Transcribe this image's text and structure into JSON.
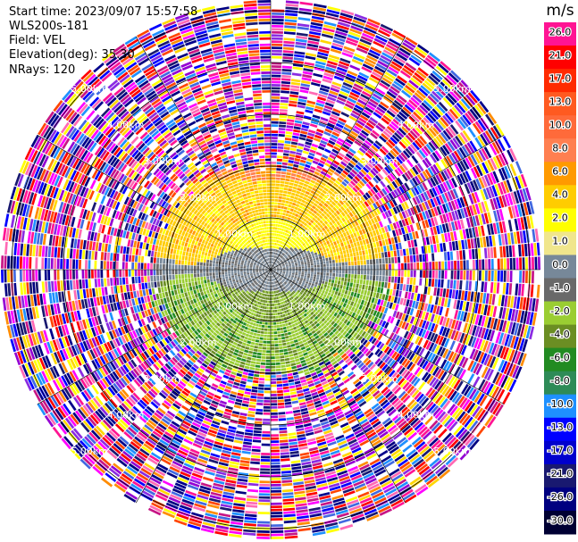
{
  "info": {
    "start_time": "Start time: 2023/09/07 15:57:58",
    "instrument": "WLS200s-181",
    "field": "Field: VEL",
    "elevation": "Elevation(deg): 35.30",
    "nrays": "NRays: 120"
  },
  "colorbar": {
    "unit": "m/s",
    "ticks": [
      "26.0",
      "21.0",
      "17.0",
      "13.0",
      "10.0",
      "8.0",
      "6.0",
      "4.0",
      "2.0",
      "1.0",
      "0.0",
      "-1.0",
      "-2.0",
      "-4.0",
      "-6.0",
      "-8.0",
      "-10.0",
      "-13.0",
      "-17.0",
      "-21.0",
      "-26.0",
      "-30.0"
    ],
    "colors": [
      "#ff1493",
      "#ff0000",
      "#ff2a00",
      "#ff5a20",
      "#ff6a3a",
      "#ff7f50",
      "#ff9a00",
      "#ffcc00",
      "#ffff00",
      "#f0e68c",
      "#778899",
      "#696969",
      "#9acd32",
      "#6b8e23",
      "#228b22",
      "#2e8b57",
      "#1e90ff",
      "#0000ff",
      "#0000cd",
      "#191970",
      "#000080",
      "#000033"
    ]
  },
  "range_rings": {
    "labels": [
      "1.00km",
      "2.00km",
      "3.00km",
      "4.00km",
      "5.00km"
    ]
  },
  "chart_data": {
    "type": "heatmap",
    "title": "",
    "field": "VEL",
    "unit": "m/s",
    "rays": 120,
    "range_rings_km": [
      1,
      2,
      3,
      4,
      5
    ],
    "value_range": [
      -30,
      26
    ],
    "regions": [
      {
        "range_km": [
          0,
          1.0
        ],
        "sector": "upper",
        "velocity_ms": 2.0
      },
      {
        "range_km": [
          0,
          0.4
        ],
        "sector": "center-band",
        "velocity_ms": 0.0
      },
      {
        "range_km": [
          0,
          1.0
        ],
        "sector": "lower",
        "velocity_ms": -4.0
      },
      {
        "range_km": [
          1.0,
          2.0
        ],
        "sector": "upper",
        "velocity_ms": 6.0
      },
      {
        "range_km": [
          1.0,
          2.0
        ],
        "sector": "lower",
        "velocity_ms": -2.0
      },
      {
        "range_km": [
          2.0,
          5.0
        ],
        "sector": "all",
        "velocity_ms": "noise"
      }
    ]
  }
}
